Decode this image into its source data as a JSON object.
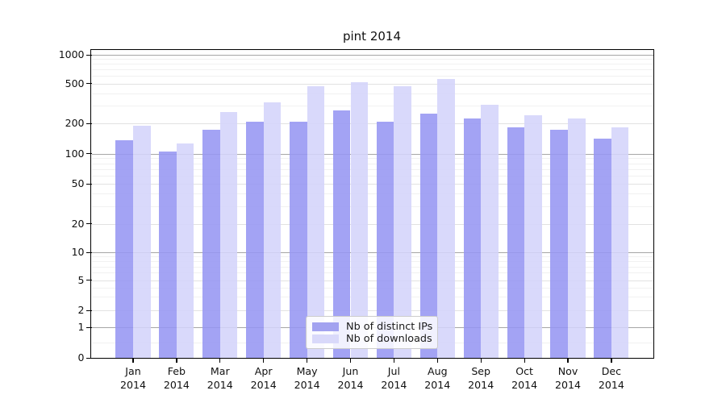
{
  "chart_data": {
    "type": "bar",
    "title": "pint 2014",
    "categories": [
      "Jan",
      "Feb",
      "Mar",
      "Apr",
      "May",
      "Jun",
      "Jul",
      "Aug",
      "Sep",
      "Oct",
      "Nov",
      "Dec"
    ],
    "category_sublabel": "2014",
    "series": [
      {
        "name": "Nb of distinct IPs",
        "color": "#a2a2f0",
        "fill": "rgba(150,150,242,0.88)",
        "values": [
          135,
          104,
          172,
          208,
          206,
          269,
          207,
          251,
          225,
          181,
          174,
          142
        ]
      },
      {
        "name": "Nb of downloads",
        "color": "#d9d9fa",
        "fill": "rgba(212,212,250,0.88)",
        "values": [
          189,
          127,
          261,
          322,
          465,
          515,
          470,
          553,
          305,
          242,
          222,
          182
        ]
      }
    ],
    "y_ticks": [
      0,
      1,
      2,
      5,
      10,
      20,
      50,
      100,
      200,
      500,
      1000
    ],
    "y_minor_ticks": [
      0.5,
      3,
      4,
      6,
      7,
      8,
      9,
      30,
      40,
      60,
      70,
      80,
      90,
      300,
      400,
      600,
      700,
      800,
      900
    ],
    "y_scale": "symlog",
    "ylim": [
      0,
      1120
    ],
    "xlabel": "",
    "ylabel": "",
    "grid": true,
    "legend_position": "lower center"
  }
}
